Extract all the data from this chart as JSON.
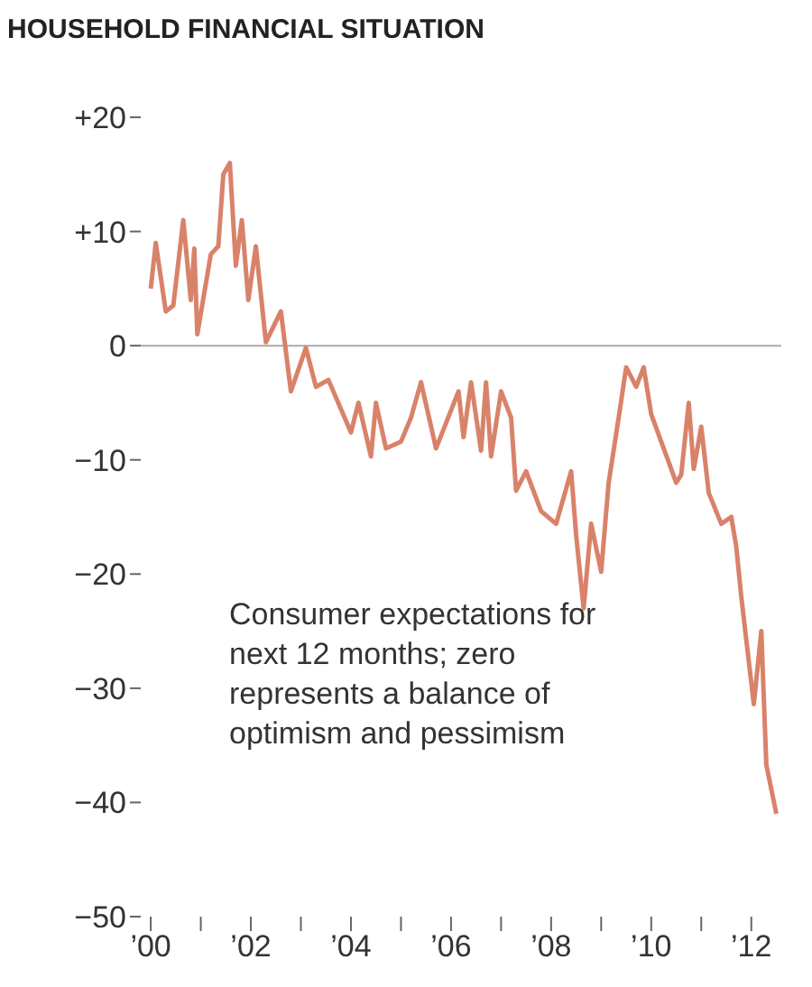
{
  "chart_data": {
    "type": "line",
    "title": "HOUSEHOLD FINANCIAL SITUATION",
    "x": [
      2000.0,
      2000.1,
      2000.3,
      2000.45,
      2000.65,
      2000.8,
      2000.87,
      2000.93,
      2001.2,
      2001.35,
      2001.45,
      2001.58,
      2001.7,
      2001.82,
      2001.95,
      2002.1,
      2002.3,
      2002.6,
      2002.8,
      2003.1,
      2003.3,
      2003.55,
      2004.0,
      2004.15,
      2004.4,
      2004.5,
      2004.7,
      2005.0,
      2005.2,
      2005.4,
      2005.7,
      2006.15,
      2006.25,
      2006.4,
      2006.6,
      2006.7,
      2006.8,
      2007.0,
      2007.2,
      2007.3,
      2007.5,
      2007.8,
      2008.1,
      2008.4,
      2008.5,
      2008.65,
      2008.8,
      2009.0,
      2009.15,
      2009.35,
      2009.5,
      2009.7,
      2009.85,
      2010.0,
      2010.25,
      2010.5,
      2010.6,
      2010.75,
      2010.85,
      2011.0,
      2011.15,
      2011.4,
      2011.6,
      2011.7,
      2011.8,
      2012.05,
      2012.2,
      2012.3,
      2012.5
    ],
    "series": [
      {
        "color": "#d9826a",
        "values": [
          5,
          9,
          3,
          3.5,
          11,
          4,
          8.5,
          1,
          8,
          8.7,
          15,
          16,
          7,
          11,
          4,
          8.7,
          0.3,
          3,
          -4,
          -0.2,
          -3.6,
          -3,
          -7.6,
          -5,
          -9.7,
          -5,
          -9,
          -8.4,
          -6.3,
          -3.2,
          -9,
          -4,
          -8,
          -3.2,
          -9.2,
          -3.2,
          -9.7,
          -4,
          -6.3,
          -12.7,
          -11,
          -14.5,
          -15.6,
          -11,
          -16.6,
          -23,
          -15.6,
          -19.8,
          -12,
          -6.3,
          -1.9,
          -3.6,
          -1.9,
          -6,
          -9,
          -12,
          -11.3,
          -5,
          -10.8,
          -7.1,
          -12.9,
          -15.6,
          -15,
          -17.6,
          -22,
          -31.4,
          -25,
          -36.7,
          -41
        ]
      }
    ],
    "marker": "none",
    "xlim": [
      1999.8,
      2012.6
    ],
    "xticks": [
      {
        "value": 2000,
        "label": "’00"
      },
      {
        "value": 2001,
        "label": null
      },
      {
        "value": 2002,
        "label": "’02"
      },
      {
        "value": 2003,
        "label": null
      },
      {
        "value": 2004,
        "label": "’04"
      },
      {
        "value": 2005,
        "label": null
      },
      {
        "value": 2006,
        "label": "’06"
      },
      {
        "value": 2007,
        "label": null
      },
      {
        "value": 2008,
        "label": "’08"
      },
      {
        "value": 2009,
        "label": null
      },
      {
        "value": 2010,
        "label": "’10"
      },
      {
        "value": 2011,
        "label": null
      },
      {
        "value": 2012,
        "label": "’12"
      }
    ],
    "ylim": [
      -50,
      20
    ],
    "yticks": [
      {
        "value": -50,
        "label": "−50"
      },
      {
        "value": -40,
        "label": "−40"
      },
      {
        "value": -30,
        "label": "−30"
      },
      {
        "value": -20,
        "label": "−20"
      },
      {
        "value": -10,
        "label": "−10"
      },
      0,
      {
        "value": 10,
        "label": "+10"
      },
      {
        "value": 20,
        "label": "+20"
      }
    ],
    "ref_lines": [
      {
        "axis": "y",
        "value": 0,
        "color": "#aaaaaa"
      }
    ],
    "annotations": [
      "Consumer expectations for next 12 months; zero represents a balance of optimism and pessimism"
    ]
  }
}
